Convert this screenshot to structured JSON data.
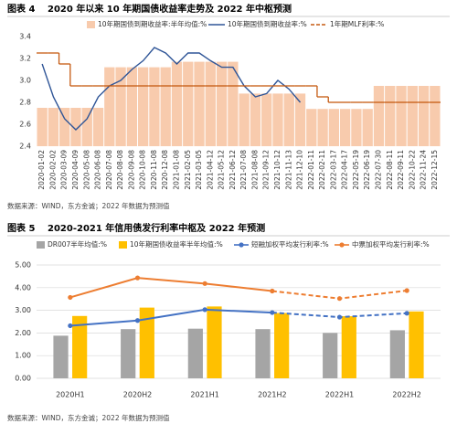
{
  "chart_data": [
    {
      "type": "combo",
      "label": "图表 4",
      "title": "2020 年以来 10 年期国债收益率走势及 2022 年中枢预测",
      "source": "数据来源：WIND，东方金诚；2022 年数据为预测值",
      "categories": [
        "2020-01-02",
        "2020-02-02",
        "2020-03-09",
        "2020-04-09",
        "2020-05-08",
        "2020-06-08",
        "2020-07-08",
        "2020-08-08",
        "2020-09-08",
        "2020-10-08",
        "2020-11-08",
        "2020-12-08",
        "2021-01-08",
        "2021-02-05",
        "2021-03-05",
        "2021-04-12",
        "2021-05-12",
        "2021-06-12",
        "2021-07-08",
        "2021-08-08",
        "2021-09-12",
        "2021-10-12",
        "2021-11-13",
        "2021-12-10",
        "2022-01-11",
        "2022-02-11",
        "2022-03-17",
        "2022-04-17",
        "2022-05-19",
        "2022-06-19",
        "2022-07-30",
        "2022-08-11",
        "2022-09-11",
        "2022-10-22",
        "2022-11-24",
        "2022-12-15"
      ],
      "ylim": [
        2.4,
        3.4
      ],
      "yticks": [
        2.4,
        2.6,
        2.8,
        {
          "value": 3,
          "label": "3.0"
        },
        3.2,
        3.4
      ],
      "grid": false,
      "legend": "top",
      "series": [
        {
          "name": "10年期国债到期收益率:半年均值:%",
          "type": "bar",
          "color": "#f8cbad",
          "values": [
            2.75,
            2.75,
            2.75,
            2.75,
            2.75,
            2.75,
            3.12,
            3.12,
            3.12,
            3.12,
            3.12,
            3.12,
            3.17,
            3.17,
            3.17,
            3.17,
            3.17,
            3.17,
            2.88,
            2.88,
            2.88,
            2.88,
            2.88,
            2.88,
            2.74,
            2.74,
            2.74,
            2.74,
            2.74,
            2.74,
            2.95,
            2.95,
            2.95,
            2.95,
            2.95,
            2.95
          ]
        },
        {
          "name": "10年期国债到期收益率:%",
          "type": "line",
          "color": "#2f5597",
          "values": [
            3.15,
            2.85,
            2.65,
            2.55,
            2.65,
            2.85,
            2.95,
            3.0,
            3.1,
            3.18,
            3.3,
            3.25,
            3.15,
            3.25,
            3.25,
            3.18,
            3.12,
            3.12,
            2.95,
            2.85,
            2.88,
            3.0,
            2.92,
            2.8,
            null,
            null,
            null,
            null,
            null,
            null,
            null,
            null,
            null,
            null,
            null,
            null
          ]
        },
        {
          "name": "1年期MLF利率:%",
          "type": "step",
          "color": "#c55a11",
          "values": [
            3.25,
            3.25,
            3.15,
            2.95,
            2.95,
            2.95,
            2.95,
            2.95,
            2.95,
            2.95,
            2.95,
            2.95,
            2.95,
            2.95,
            2.95,
            2.95,
            2.95,
            2.95,
            2.95,
            2.95,
            2.95,
            2.95,
            2.95,
            2.95,
            2.95,
            2.85,
            2.8,
            2.8,
            2.8,
            2.8,
            2.8,
            2.8,
            2.8,
            2.8,
            2.8,
            2.8
          ]
        }
      ]
    },
    {
      "type": "combo",
      "label": "图表 5",
      "title": "2020-2021 年信用债发行利率中枢及 2022 年预测",
      "source": "数据来源：WIND，东方金诚；2022 年数据为预测值",
      "categories": [
        "2020H1",
        "2020H2",
        "2021H1",
        "2021H2",
        "2022H1",
        "2022H2"
      ],
      "ylim": [
        0,
        5
      ],
      "yticks": [
        {
          "value": 0,
          "label": "0.00"
        },
        {
          "value": 1,
          "label": "1.00"
        },
        {
          "value": 2,
          "label": "2.00"
        },
        {
          "value": 3,
          "label": "3.00"
        },
        {
          "value": 4,
          "label": "4.00"
        },
        {
          "value": 5,
          "label": "5.00"
        }
      ],
      "grid": true,
      "legend": "top",
      "series": [
        {
          "name": "DR007半年均值:%",
          "type": "bar",
          "color": "#a5a5a5",
          "values": [
            1.88,
            2.17,
            2.19,
            2.17,
            2.0,
            2.12
          ]
        },
        {
          "name": "10年期国债收益率半年均值:%",
          "type": "bar",
          "color": "#ffc000",
          "values": [
            2.75,
            3.12,
            3.17,
            2.88,
            2.74,
            2.95
          ]
        },
        {
          "name": "短融加权平均发行利率:%",
          "type": "line",
          "color": "#4472c4",
          "markers": true,
          "dash_from": 3,
          "values": [
            2.32,
            2.55,
            3.03,
            2.9,
            2.7,
            2.87
          ]
        },
        {
          "name": "中票加权平均发行利率:%",
          "type": "line",
          "color": "#ed7d31",
          "markers": true,
          "dash_from": 3,
          "values": [
            3.57,
            4.43,
            4.18,
            3.85,
            3.52,
            3.87
          ]
        }
      ]
    }
  ]
}
